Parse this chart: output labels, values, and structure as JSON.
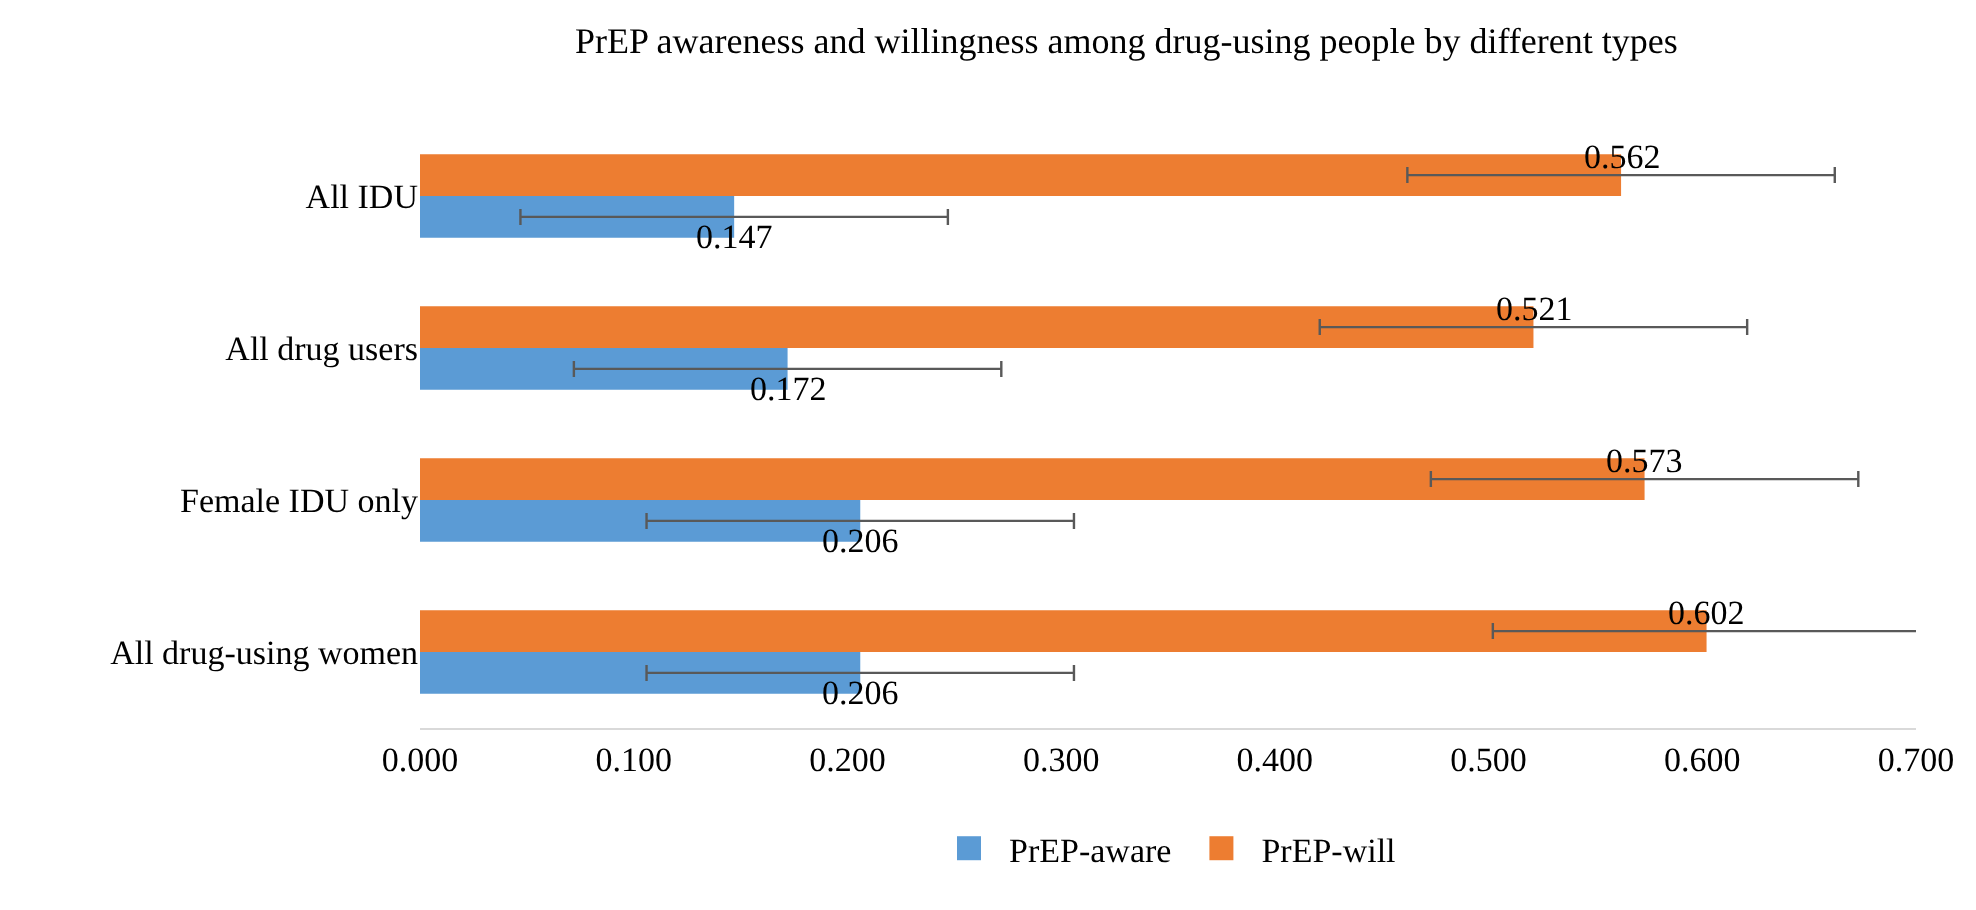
{
  "chart_data": {
    "type": "bar",
    "orientation": "horizontal",
    "title": "PrEP awareness and willingness among drug-using people by different types",
    "categories": [
      "All IDU",
      "All drug users",
      "Female IDU only",
      "All drug-using women"
    ],
    "series": [
      {
        "name": "PrEP-will",
        "color": "#ed7d31",
        "values": [
          0.562,
          0.521,
          0.573,
          0.602
        ],
        "errors": [
          0.1,
          0.1,
          0.1,
          0.1
        ]
      },
      {
        "name": "PrEP-aware",
        "color": "#5b9bd5",
        "values": [
          0.147,
          0.172,
          0.206,
          0.206
        ],
        "errors": [
          0.1,
          0.1,
          0.1,
          0.1
        ]
      }
    ],
    "xlim": [
      0,
      0.7
    ],
    "xticks": [
      {
        "value": 0,
        "label": "0.000"
      },
      {
        "value": 0.1,
        "label": "0.100"
      },
      {
        "value": 0.2,
        "label": "0.200"
      },
      {
        "value": 0.3,
        "label": "0.300"
      },
      {
        "value": 0.4,
        "label": "0.400"
      },
      {
        "value": 0.5,
        "label": "0.500"
      },
      {
        "value": 0.6,
        "label": "0.600"
      },
      {
        "value": 0.7,
        "label": "0.700"
      }
    ],
    "data_labels": true,
    "grid": false,
    "legend": "bottom"
  }
}
